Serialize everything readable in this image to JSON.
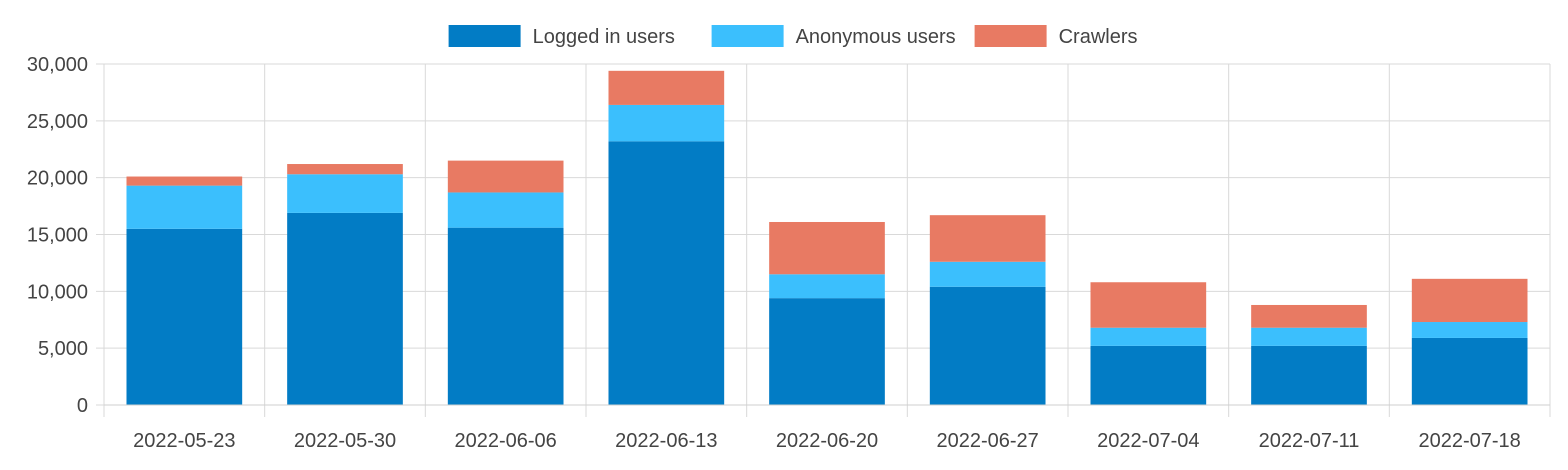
{
  "chart_data": {
    "type": "bar",
    "stacked": true,
    "categories": [
      "2022-05-23",
      "2022-05-30",
      "2022-06-06",
      "2022-06-13",
      "2022-06-20",
      "2022-06-27",
      "2022-07-04",
      "2022-07-11",
      "2022-07-18"
    ],
    "series": [
      {
        "name": "Logged in users",
        "color": "#027cc5",
        "values": [
          15500,
          16900,
          15600,
          23200,
          9400,
          10400,
          5200,
          5200,
          5900
        ]
      },
      {
        "name": "Anonymous users",
        "color": "#3bbffd",
        "values": [
          3800,
          3400,
          3100,
          3200,
          2100,
          2200,
          1600,
          1600,
          1400
        ]
      },
      {
        "name": "Crawlers",
        "color": "#e87a63",
        "values": [
          800,
          900,
          2800,
          3000,
          4600,
          4100,
          4000,
          2000,
          3800
        ]
      }
    ],
    "ylim": [
      0,
      30000
    ],
    "yticks": [
      0,
      5000,
      10000,
      15000,
      20000,
      25000,
      30000
    ],
    "ytick_labels": [
      "0",
      "5,000",
      "10,000",
      "15,000",
      "20,000",
      "25,000",
      "30,000"
    ],
    "grid": true,
    "legend_position": "top-center",
    "title": "",
    "xlabel": "",
    "ylabel": ""
  }
}
